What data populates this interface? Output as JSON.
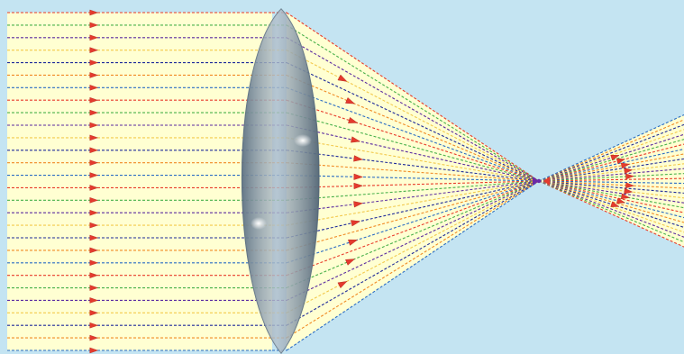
{
  "diagram": {
    "subject": "ray-trace",
    "ray_count": 28,
    "colors": {
      "background": "#c4e4f2",
      "beam_fill": "#ffffd2",
      "lens_fill": "#7f93a4",
      "lens_edge": "#5f7282",
      "arrow": "#e43a2e",
      "focus_marker": "#6a2aa8"
    },
    "ray_palette": [
      "#e83b2a",
      "#f08a24",
      "#f2c94c",
      "#48b04a",
      "#2a6cc4",
      "#1e2a9a",
      "#5a2aa0"
    ],
    "icons": [
      "arrow-icon",
      "focus-marker-icon"
    ]
  }
}
